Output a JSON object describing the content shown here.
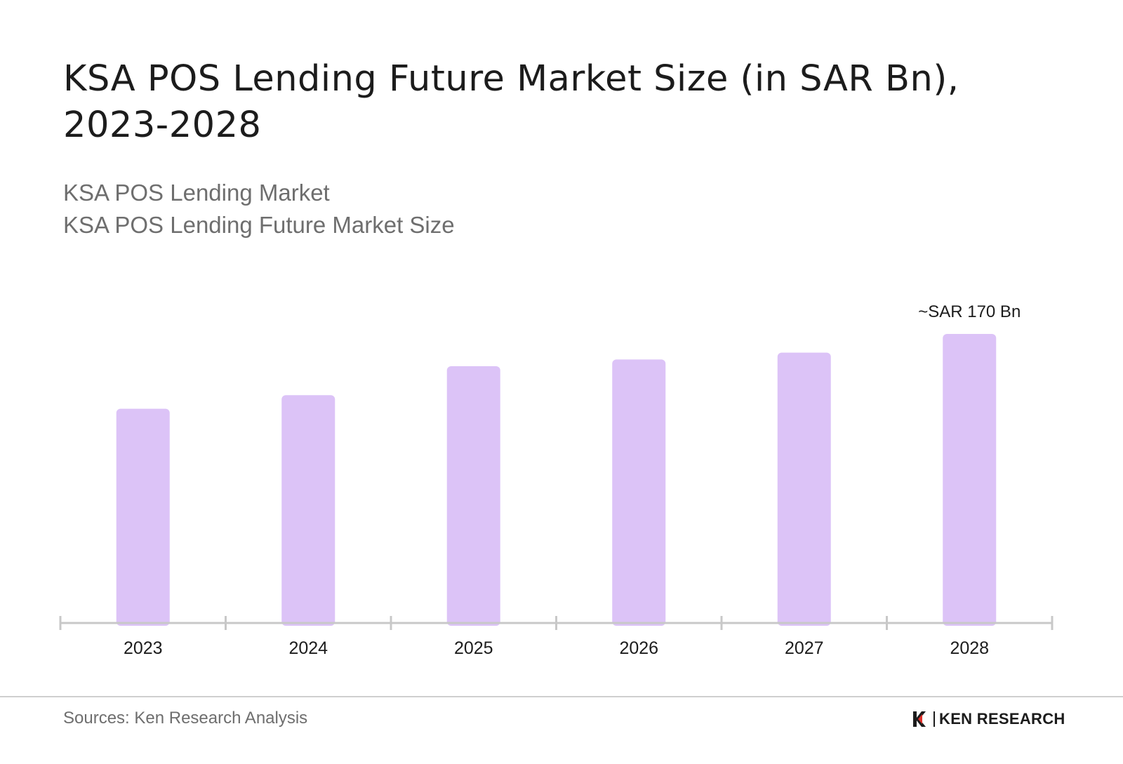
{
  "title_line1": "KSA POS Lending Future Market Size (in SAR Bn),",
  "title_line2": "2023-2028",
  "subtitle_line1": "KSA POS Lending Market",
  "subtitle_line2": "KSA POS Lending Future Market Size",
  "footer": {
    "sources": "Sources: Ken Research Analysis",
    "logo_text": "KEN RESEARCH"
  },
  "colors": {
    "bar": "#dcc3f7",
    "axis": "#c8c8c8"
  },
  "chart_data": {
    "type": "bar",
    "categories": [
      "2023",
      "2024",
      "2025",
      "2026",
      "2027",
      "2028"
    ],
    "values": [
      126,
      134,
      151,
      155,
      159,
      170
    ],
    "annotations": [
      {
        "category": "2028",
        "text": "~SAR 170 Bn"
      }
    ],
    "xlabel": "",
    "ylabel": "",
    "ylim": [
      0,
      170
    ],
    "grid": false,
    "legend": "none"
  }
}
